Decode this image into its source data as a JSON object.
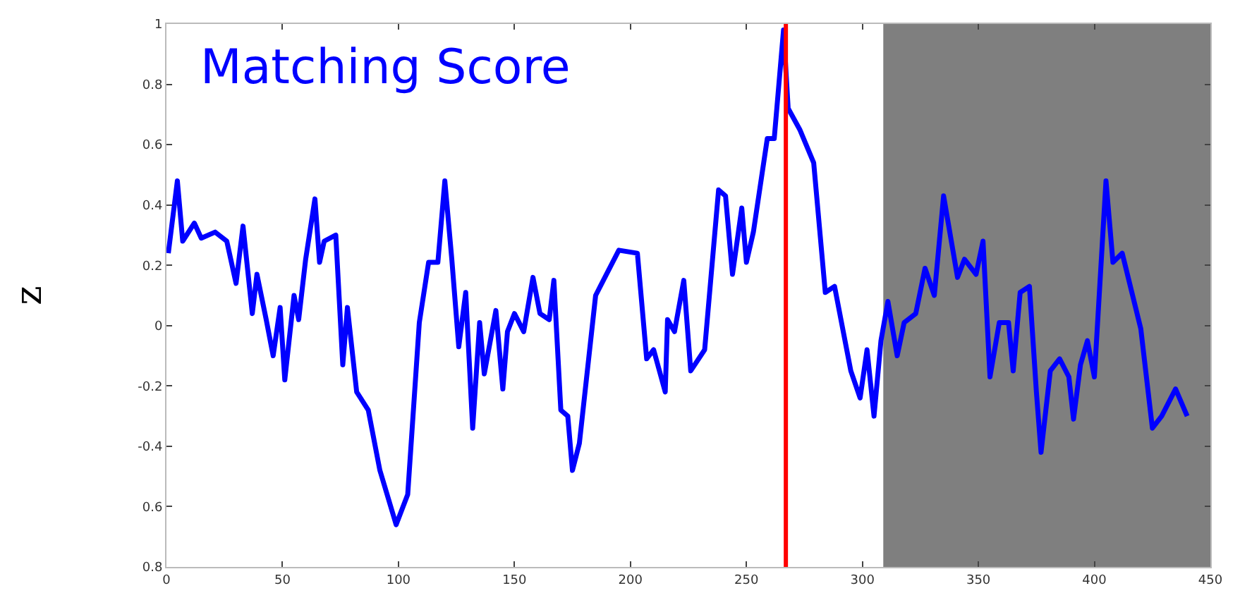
{
  "chart_data": {
    "type": "line",
    "ylabel": "z",
    "annotations": [
      "Matching Score"
    ],
    "x": [
      0.8,
      4.7,
      7,
      12,
      15,
      21,
      26,
      30,
      33,
      37,
      39,
      43,
      46,
      49,
      51,
      55,
      57,
      60,
      64,
      66,
      68,
      73,
      76,
      78,
      82,
      87,
      92,
      99,
      104,
      109,
      113,
      117,
      120,
      123,
      126,
      129,
      132,
      135,
      137,
      142,
      145,
      147,
      150,
      154,
      158,
      161,
      165,
      167,
      170,
      173,
      175,
      178,
      185,
      187,
      195,
      203,
      207,
      210,
      215,
      216,
      219,
      223,
      226,
      232,
      238,
      241,
      244,
      248,
      250,
      253,
      259,
      262,
      266,
      268,
      273,
      279,
      284,
      288,
      295,
      299,
      302,
      305,
      308,
      311,
      315,
      318,
      323,
      327,
      331,
      335,
      341,
      344,
      349,
      352,
      355,
      359,
      363,
      365,
      368,
      372,
      375,
      377,
      381,
      385,
      389,
      391,
      394,
      397,
      400,
      405,
      408,
      412,
      420,
      425,
      429,
      435,
      440
    ],
    "series": [
      {
        "color": "#0000ff",
        "values": [
          0.24,
          0.48,
          0.28,
          0.34,
          0.29,
          0.31,
          0.28,
          0.14,
          0.33,
          0.04,
          0.17,
          0.02,
          -0.1,
          0.06,
          -0.18,
          0.1,
          0.02,
          0.22,
          0.42,
          0.21,
          0.28,
          0.3,
          -0.13,
          0.06,
          -0.22,
          -0.28,
          -0.48,
          -0.66,
          -0.56,
          0.01,
          0.21,
          0.21,
          0.48,
          0.22,
          -0.07,
          0.11,
          -0.34,
          0.01,
          -0.16,
          0.05,
          -0.21,
          -0.02,
          0.04,
          -0.02,
          0.16,
          0.04,
          0.02,
          0.15,
          -0.28,
          -0.3,
          -0.48,
          -0.39,
          0.1,
          0.13,
          0.25,
          0.24,
          -0.11,
          -0.08,
          -0.22,
          0.02,
          -0.02,
          0.15,
          -0.15,
          -0.08,
          0.45,
          0.43,
          0.17,
          0.39,
          0.21,
          0.31,
          0.62,
          0.62,
          0.98,
          0.72,
          0.65,
          0.54,
          0.11,
          0.13,
          -0.15,
          -0.24,
          -0.08,
          -0.3,
          -0.05,
          0.08,
          -0.1,
          0.01,
          0.04,
          0.19,
          0.1,
          0.43,
          0.16,
          0.22,
          0.17,
          0.28,
          -0.17,
          0.01,
          0.01,
          -0.15,
          0.11,
          0.13,
          -0.22,
          -0.42,
          -0.15,
          -0.11,
          -0.17,
          -0.31,
          -0.13,
          -0.05,
          -0.17,
          0.48,
          0.21,
          0.24,
          -0.01,
          -0.34,
          -0.3,
          -0.21,
          -0.3
        ]
      }
    ],
    "xlim": [
      0,
      450
    ],
    "xticks": [
      0,
      50,
      100,
      150,
      200,
      250,
      300,
      350,
      400,
      450
    ],
    "ylim": [
      -0.8,
      1
    ],
    "yticks": [
      {
        "value": -0.8,
        "label": "0.8"
      },
      {
        "value": -0.6,
        "label": "0.6"
      },
      -0.4,
      -0.2,
      0,
      0.2,
      0.4,
      0.6,
      0.8,
      1
    ],
    "ref_lines": [
      {
        "axis": "x",
        "value": 267,
        "color": "#ff0000"
      }
    ],
    "bands": [
      {
        "axis": "x",
        "from": 309,
        "to": 450,
        "color": "#7f7f7f"
      }
    ],
    "grid": false,
    "marker": "none",
    "line_style": "solid"
  }
}
